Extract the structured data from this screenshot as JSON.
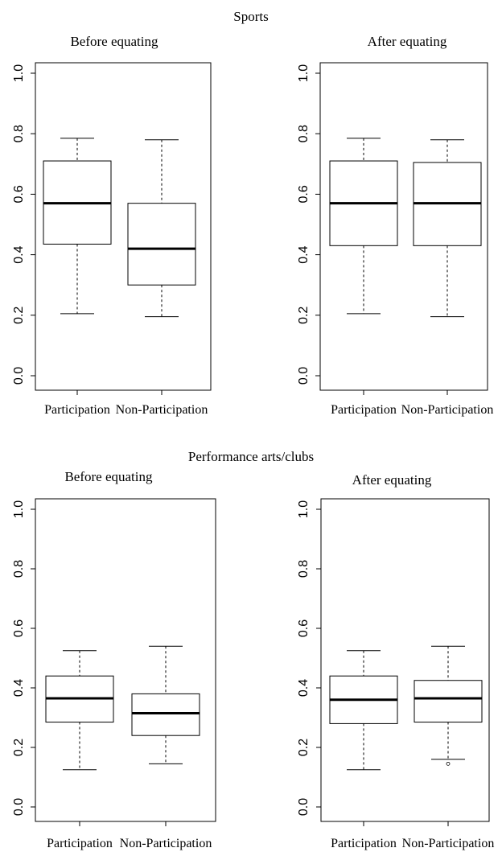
{
  "figure": {
    "group_titles": [
      "Sports",
      "Performance arts/clubs"
    ]
  },
  "chart_data": [
    {
      "type": "box",
      "group": "Sports",
      "title": "Before equating",
      "categories": [
        "Participation",
        "Non-Participation"
      ],
      "yticks": [
        "0.0",
        "0.2",
        "0.4",
        "0.6",
        "0.8",
        "1.0"
      ],
      "ylim": [
        0,
        1
      ],
      "boxes": [
        {
          "whisker_low": 0.205,
          "q1": 0.435,
          "median": 0.57,
          "q3": 0.71,
          "whisker_high": 0.785,
          "outliers": []
        },
        {
          "whisker_low": 0.195,
          "q1": 0.3,
          "median": 0.42,
          "q3": 0.57,
          "whisker_high": 0.78,
          "outliers": []
        }
      ]
    },
    {
      "type": "box",
      "group": "Sports",
      "title": "After equating",
      "categories": [
        "Participation",
        "Non-Participation"
      ],
      "yticks": [
        "0.0",
        "0.2",
        "0.4",
        "0.6",
        "0.8",
        "1.0"
      ],
      "ylim": [
        0,
        1
      ],
      "boxes": [
        {
          "whisker_low": 0.205,
          "q1": 0.43,
          "median": 0.57,
          "q3": 0.71,
          "whisker_high": 0.785,
          "outliers": []
        },
        {
          "whisker_low": 0.195,
          "q1": 0.43,
          "median": 0.57,
          "q3": 0.705,
          "whisker_high": 0.78,
          "outliers": []
        }
      ]
    },
    {
      "type": "box",
      "group": "Performance arts/clubs",
      "title": "Before equating",
      "categories": [
        "Participation",
        "Non-Participation"
      ],
      "yticks": [
        "0.0",
        "0.2",
        "0.4",
        "0.6",
        "0.8",
        "1.0"
      ],
      "ylim": [
        0,
        1
      ],
      "boxes": [
        {
          "whisker_low": 0.125,
          "q1": 0.285,
          "median": 0.365,
          "q3": 0.44,
          "whisker_high": 0.525,
          "outliers": []
        },
        {
          "whisker_low": 0.145,
          "q1": 0.24,
          "median": 0.315,
          "q3": 0.38,
          "whisker_high": 0.54,
          "outliers": []
        }
      ]
    },
    {
      "type": "box",
      "group": "Performance arts/clubs",
      "title": "After equating",
      "categories": [
        "Participation",
        "Non-Participation"
      ],
      "yticks": [
        "0.0",
        "0.2",
        "0.4",
        "0.6",
        "0.8",
        "1.0"
      ],
      "ylim": [
        0,
        1
      ],
      "boxes": [
        {
          "whisker_low": 0.125,
          "q1": 0.28,
          "median": 0.36,
          "q3": 0.44,
          "whisker_high": 0.525,
          "outliers": []
        },
        {
          "whisker_low": 0.16,
          "q1": 0.285,
          "median": 0.365,
          "q3": 0.425,
          "whisker_high": 0.54,
          "outliers": [
            0.145
          ]
        }
      ]
    }
  ]
}
